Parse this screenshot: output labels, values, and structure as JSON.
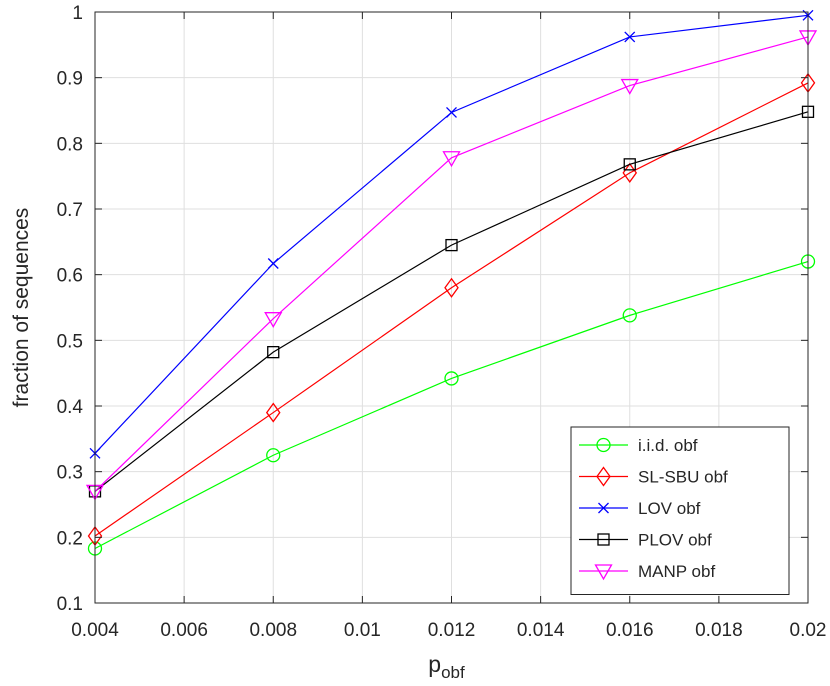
{
  "chart_data": {
    "type": "line",
    "xlabel": "p",
    "xlabel_subscript": "obf",
    "ylabel": "fraction of sequences",
    "xlim": [
      0.004,
      0.02
    ],
    "ylim": [
      0.1,
      1
    ],
    "grid": true,
    "legend_position": "bottom-right",
    "x_ticks": [
      "0.004",
      "0.006",
      "0.008",
      "0.01",
      "0.012",
      "0.014",
      "0.016",
      "0.018",
      "0.02"
    ],
    "y_ticks": [
      "0.1",
      "0.2",
      "0.3",
      "0.4",
      "0.5",
      "0.6",
      "0.7",
      "0.8",
      "0.9",
      "1"
    ],
    "x": [
      0.004,
      0.008,
      0.012,
      0.016,
      0.02
    ],
    "series": [
      {
        "name": "i.i.d. obf",
        "color": "#00ff00",
        "marker": "circle",
        "values": [
          0.183,
          0.325,
          0.442,
          0.538,
          0.62
        ]
      },
      {
        "name": "SL-SBU obf",
        "color": "#ff0000",
        "marker": "diamond",
        "values": [
          0.202,
          0.39,
          0.58,
          0.755,
          0.892
        ]
      },
      {
        "name": "LOV obf",
        "color": "#0000ff",
        "marker": "x",
        "values": [
          0.328,
          0.617,
          0.847,
          0.962,
          0.995
        ]
      },
      {
        "name": "PLOV obf",
        "color": "#000000",
        "marker": "square",
        "values": [
          0.27,
          0.482,
          0.645,
          0.768,
          0.848
        ]
      },
      {
        "name": "MANP obf",
        "color": "#ff00ff",
        "marker": "triangle-down",
        "values": [
          0.27,
          0.533,
          0.778,
          0.888,
          0.962
        ]
      }
    ]
  }
}
